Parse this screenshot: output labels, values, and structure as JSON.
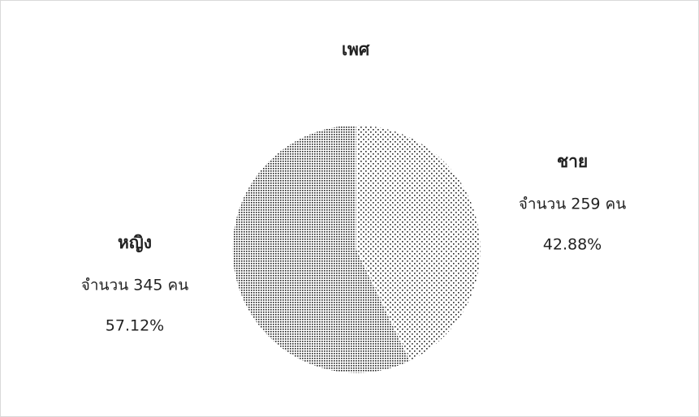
{
  "chart_data": {
    "type": "pie",
    "title": "เพศ",
    "categories": [
      "ชาย",
      "หญิง"
    ],
    "values": [
      42.88,
      57.12
    ],
    "value_labels": [
      "42.88%",
      "57.12%"
    ],
    "count_labels": [
      "จำนวน 259 คน",
      "จำนวน 345 คน"
    ]
  }
}
